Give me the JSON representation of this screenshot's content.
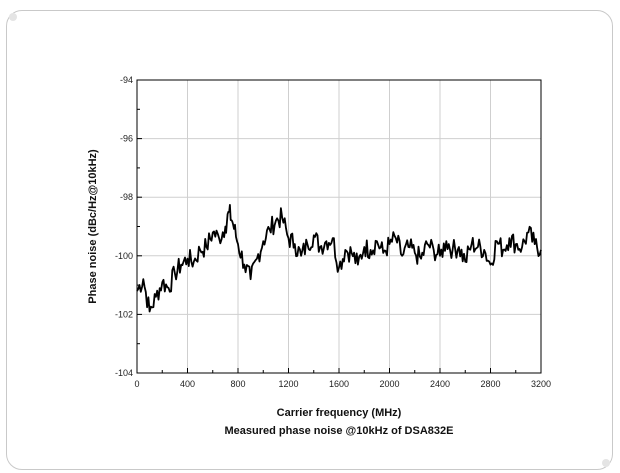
{
  "chart_data": {
    "type": "line",
    "title": "",
    "caption": "Measured phase noise @10kHz of DSA832E",
    "xlabel": "Carrier frequency (MHz)",
    "ylabel": "Phase noise (dBc/Hz@10kHz)",
    "xlim": [
      0,
      3200
    ],
    "ylim": [
      -104,
      -94
    ],
    "xticks": [
      "0",
      "400",
      "800",
      "1200",
      "1600",
      "2000",
      "2400",
      "2800",
      "3200"
    ],
    "yticks": [
      "-104",
      "-102",
      "-100",
      "-98",
      "-96",
      "-94"
    ],
    "grid": true,
    "legend": "none",
    "series": [
      {
        "color": "#000000",
        "x": [
          0,
          50,
          100,
          150,
          200,
          250,
          300,
          350,
          400,
          450,
          500,
          550,
          600,
          650,
          700,
          730,
          760,
          800,
          850,
          900,
          950,
          1000,
          1050,
          1100,
          1150,
          1200,
          1250,
          1300,
          1350,
          1400,
          1450,
          1500,
          1550,
          1600,
          1650,
          1700,
          1750,
          1800,
          1850,
          1900,
          1950,
          2000,
          2050,
          2100,
          2150,
          2200,
          2250,
          2300,
          2350,
          2400,
          2450,
          2500,
          2550,
          2600,
          2650,
          2700,
          2750,
          2800,
          2850,
          2900,
          2950,
          3000,
          3050,
          3100,
          3150,
          3200
        ],
        "y": [
          -101.2,
          -100.8,
          -101.9,
          -101.4,
          -100.9,
          -101.1,
          -100.6,
          -100.3,
          -100.1,
          -100.2,
          -99.8,
          -99.7,
          -99.2,
          -99.4,
          -99.0,
          -98.5,
          -98.9,
          -99.6,
          -100.3,
          -100.8,
          -100.1,
          -99.5,
          -99.1,
          -98.8,
          -98.7,
          -99.4,
          -99.6,
          -100.0,
          -99.6,
          -99.3,
          -99.7,
          -99.5,
          -99.4,
          -100.4,
          -99.8,
          -99.9,
          -100.3,
          -99.7,
          -99.8,
          -99.5,
          -99.9,
          -99.6,
          -99.4,
          -100.0,
          -99.7,
          -99.9,
          -100.1,
          -99.6,
          -99.8,
          -100.0,
          -99.5,
          -99.8,
          -99.7,
          -100.2,
          -99.6,
          -99.7,
          -99.8,
          -100.3,
          -99.5,
          -99.8,
          -99.4,
          -99.6,
          -99.7,
          -99.2,
          -99.6,
          -99.8
        ]
      }
    ]
  }
}
